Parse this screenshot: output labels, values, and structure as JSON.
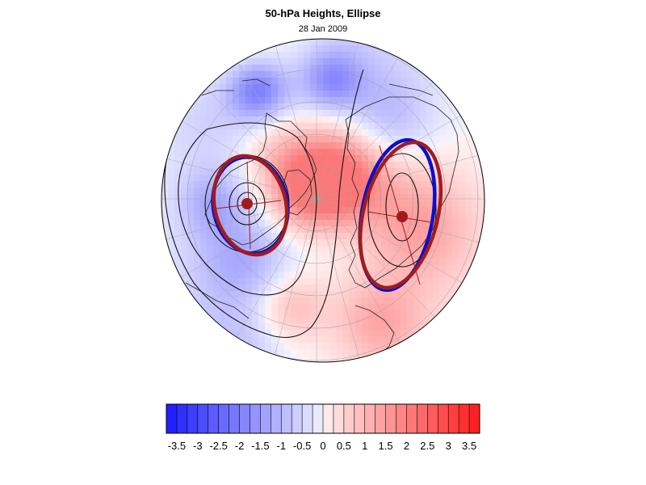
{
  "title": "50-hPa Heights, Ellipse",
  "subtitle": "28 Jan 2009",
  "colorbar": {
    "tick_labels": [
      "-3.5",
      "-3",
      "-2.5",
      "-2",
      "-1.5",
      "-1",
      "-0.5",
      "0",
      "0.5",
      "1",
      "1.5",
      "2",
      "2.5",
      "3",
      "3.5"
    ],
    "levels": [
      -3.75,
      -3.5,
      -3.25,
      -3,
      -2.75,
      -2.5,
      -2.25,
      -2,
      -1.75,
      -1.5,
      -1.25,
      -1,
      -0.75,
      -0.5,
      -0.25,
      0,
      0.25,
      0.5,
      0.75,
      1,
      1.25,
      1.5,
      1.75,
      2,
      2.25,
      2.5,
      2.75,
      3,
      3.25,
      3.5,
      3.75
    ],
    "colors": {
      "neg": "#1a1aff",
      "pos": "#ff1a1a",
      "mid": "#ffffff"
    }
  },
  "map": {
    "projection": "north-polar-stereographic",
    "features": [
      "coastlines",
      "lat-lon-grid",
      "anomaly-shading",
      "height-contours",
      "ellipse-fit"
    ],
    "ellipse_colors": {
      "fit": "#a01c1c",
      "contour": "#0a10cc"
    }
  }
}
